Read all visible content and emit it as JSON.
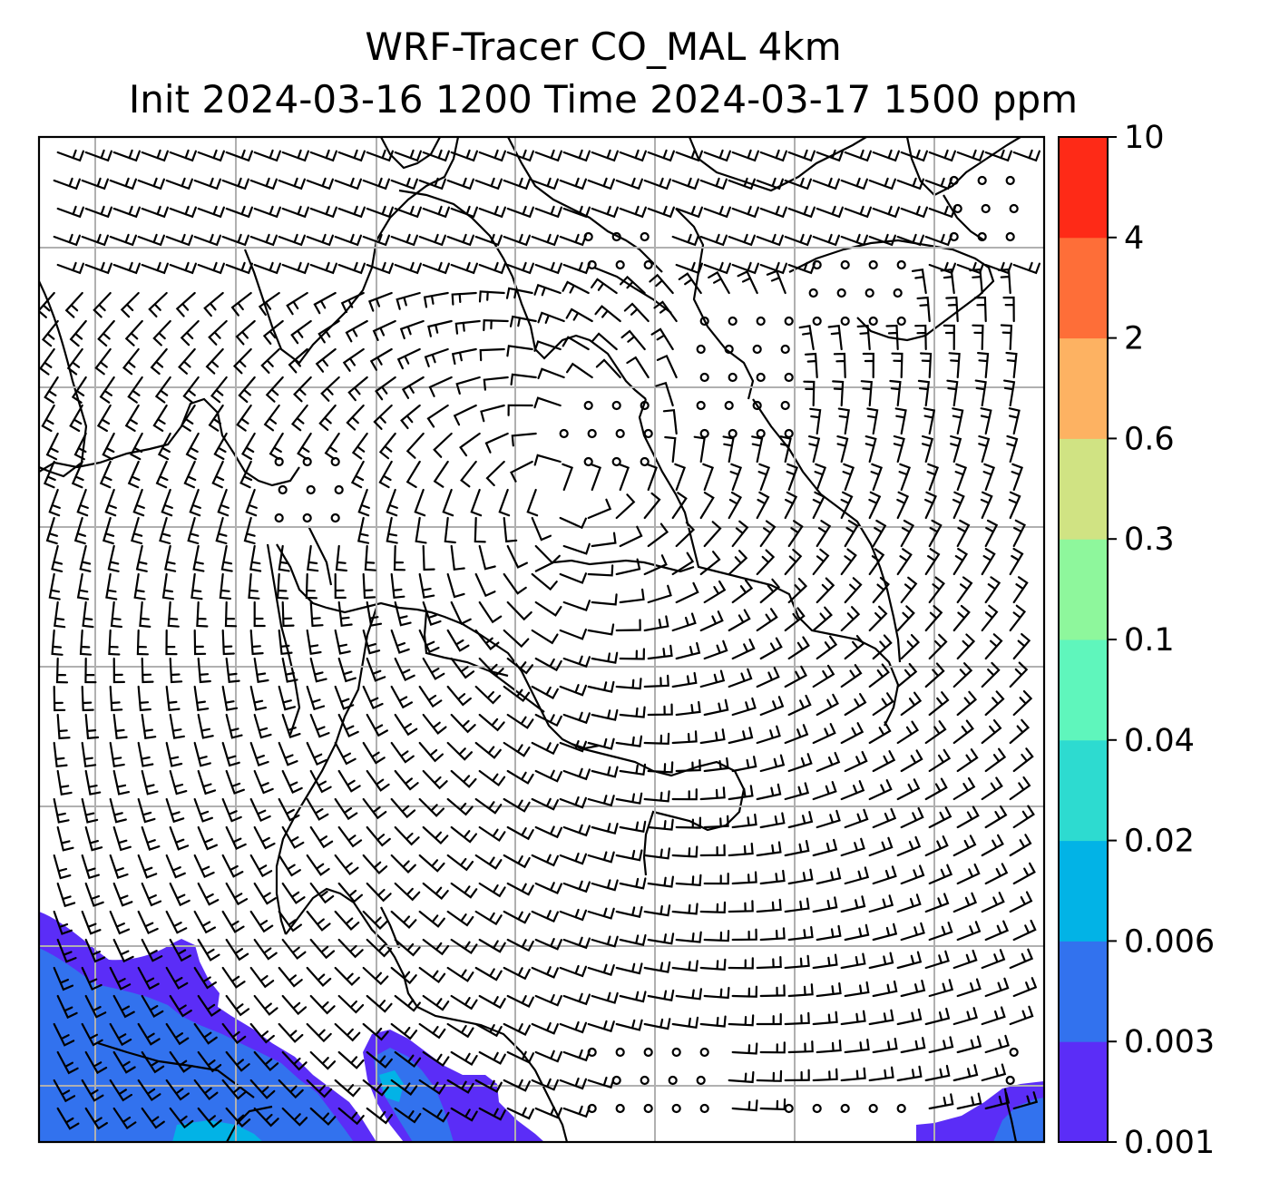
{
  "title": {
    "line1": "WRF-Tracer CO_MAL 4km",
    "line2": "Init 2024-03-16 1200 Time 2024-03-17 1500 ppm"
  },
  "colorbar": {
    "levels": [
      "0.001",
      "0.003",
      "0.006",
      "0.02",
      "0.04",
      "0.1",
      "0.3",
      "0.6",
      "2",
      "4",
      "10"
    ],
    "colors": [
      "#5b2df7",
      "#3272ee",
      "#02b3e6",
      "#2ddbd0",
      "#5ff6bc",
      "#8ef79c",
      "#d0e383",
      "#fdb262",
      "#fe6e38",
      "#fe2a17"
    ]
  },
  "map": {
    "gridlines": "on",
    "grid_color": "#b0b0b0",
    "field": "CO_MAL tracer concentration with wind barbs",
    "filled_color_lowest": "#5b2df7",
    "filled_color_second": "#3272ee",
    "filled_color_third": "#02b3e6"
  }
}
